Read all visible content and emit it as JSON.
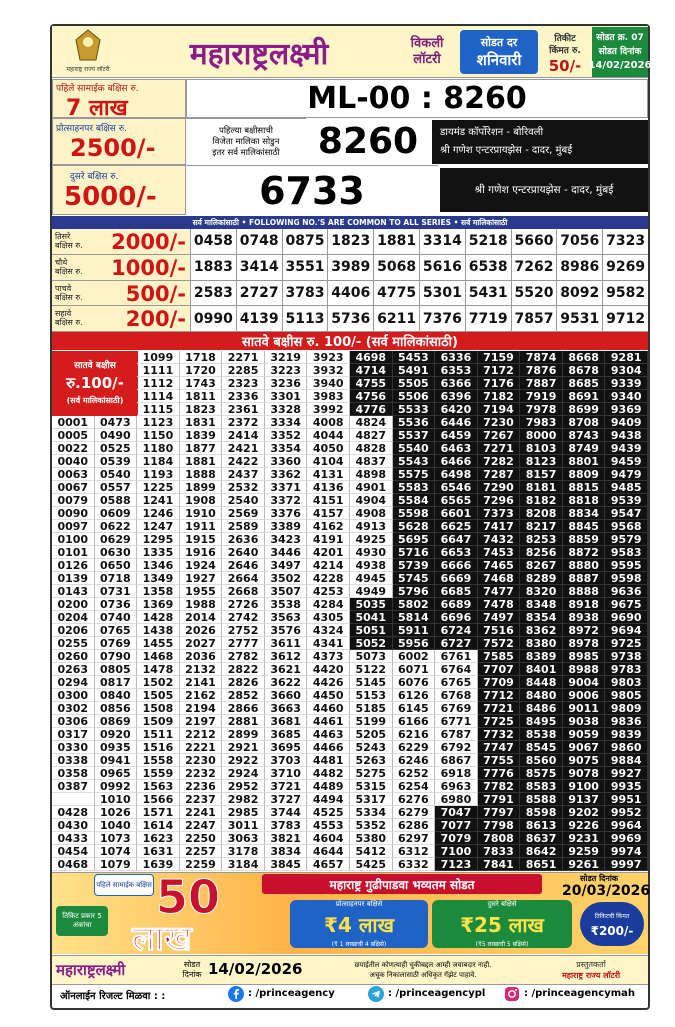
{
  "header": {
    "logo_caption": "महाराष्ट्र राज्य लॉटरी",
    "title": "महाराष्ट्रलक्ष्मी",
    "weekly_1": "विकली",
    "weekly_2": "लॉटरी",
    "draw_day_label": "सोडत दर",
    "draw_day": "शनिवारी",
    "price_label_1": "तिकीट",
    "price_label_2": "किंमत रु.",
    "price": "50/-",
    "draw_no": "सोडत क्र. 07",
    "draw_date_label": "सोडत दिनांक",
    "draw_date": "14/02/2026"
  },
  "first_prize": {
    "label": "पहिले सामाईक बक्षिस रु.",
    "amount": "7 लाख",
    "number": "ML-00 : 8260"
  },
  "consolation_prize": {
    "label": "प्रोत्साहनपर बक्षिस रु.",
    "amount": "2500/-",
    "note_1": "पहिल्या बक्षीसाची",
    "note_2": "विजेता मालिका सोडुन",
    "note_3": "इतर सर्व मालिकांसाठी",
    "number": "8260",
    "seller_1": "डायमंड कॉर्पोरेशन - बोरिवली",
    "seller_2": "श्री गणेश एन्टरप्रायझेस - दादर, मुंबई"
  },
  "second_prize": {
    "label": "दुसरे बक्षिस रु.",
    "amount": "5000/-",
    "number": "6733",
    "seller": "श्री गणेश एन्टरप्रायझेस - दादर, मुंबई"
  },
  "common_banner": "सर्व मालिकांसाठी  •  FOLLOWING NO.'S ARE COMMON TO ALL SERIES  •  सर्व मालिकांसाठी",
  "prizes": [
    {
      "label": [
        "तिसरे",
        "बक्षिस रु."
      ],
      "amount": "2000/-",
      "numbers": [
        "0458",
        "0748",
        "0875",
        "1823",
        "1881",
        "3314",
        "5218",
        "5660",
        "7056",
        "7323"
      ]
    },
    {
      "label": [
        "चौथे",
        "बक्षिस रु."
      ],
      "amount": "1000/-",
      "numbers": [
        "1883",
        "3414",
        "3551",
        "3989",
        "5068",
        "5616",
        "6538",
        "7262",
        "8986",
        "9269"
      ]
    },
    {
      "label": [
        "पाचवे",
        "बक्षिस रु."
      ],
      "amount": "500/-",
      "numbers": [
        "2583",
        "2727",
        "3783",
        "4406",
        "4775",
        "5301",
        "5431",
        "5520",
        "8092",
        "9582"
      ]
    },
    {
      "label": [
        "सहावे",
        "बक्षिस रु."
      ],
      "amount": "200/-",
      "numbers": [
        "0990",
        "4139",
        "5113",
        "5736",
        "6211",
        "7376",
        "7719",
        "7857",
        "9531",
        "9712"
      ]
    }
  ],
  "seventh_prize": {
    "banner": "सातवे बक्षीस रु. 100/- (सर्व मालिकांसाठी)",
    "label_1": "सातवे बक्षीस",
    "label_2": "रु.100/-",
    "label_3": "(सर्व मालिकांसाठी)",
    "columns": [
      [
        "0001",
        "0005",
        "0022",
        "0040",
        "0063",
        "0067",
        "0079",
        "0090",
        "0097",
        "0100",
        "0101",
        "0126",
        "0139",
        "0143",
        "0200",
        "0204",
        "0206",
        "0255",
        "0260",
        "0263",
        "0294",
        "0300",
        "0302",
        "0306",
        "0317",
        "0330",
        "0338",
        "0358",
        "0387",
        null,
        "0428",
        "0430",
        "0433",
        "0454",
        "0468"
      ],
      [
        "0473",
        "0490",
        "0525",
        "0539",
        "0540",
        "0557",
        "0588",
        "0609",
        "0622",
        "0629",
        "0630",
        "0650",
        "0718",
        "0731",
        "0736",
        "0740",
        "0765",
        "0769",
        "0790",
        "0805",
        "0817",
        "0840",
        "0856",
        "0869",
        "0920",
        "0935",
        "0941",
        "0965",
        "0992",
        "1010",
        "1026",
        "1040",
        "1073",
        "1074",
        "1079"
      ],
      [
        "1099",
        "1111",
        "1112",
        "1114",
        "1115",
        "1123",
        "1150",
        "1180",
        "1184",
        "1193",
        "1225",
        "1241",
        "1246",
        "1247",
        "1295",
        "1335",
        "1346",
        "1349",
        "1358",
        "1369",
        "1428",
        "1438",
        "1455",
        "1468",
        "1478",
        "1502",
        "1505",
        "1508",
        "1509",
        "1511",
        "1516",
        "1558",
        "1559",
        "1563",
        "1566",
        "1571",
        "1614",
        "1623",
        "1631",
        "1639"
      ],
      [
        "1718",
        "1720",
        "1743",
        "1811",
        "1823",
        "1831",
        "1839",
        "1877",
        "1881",
        "1888",
        "1899",
        "1908",
        "1910",
        "1911",
        "1915",
        "1916",
        "1924",
        "1927",
        "1955",
        "1988",
        "2014",
        "2026",
        "2027",
        "2036",
        "2132",
        "2141",
        "2162",
        "2194",
        "2197",
        "2212",
        "2221",
        "2230",
        "2232",
        "2236",
        "2237",
        "2241",
        "2247",
        "2250",
        "2257",
        "2259"
      ],
      [
        "2271",
        "2285",
        "2323",
        "2336",
        "2361",
        "2372",
        "2414",
        "2421",
        "2422",
        "2437",
        "2532",
        "2540",
        "2569",
        "2589",
        "2636",
        "2640",
        "2646",
        "2664",
        "2668",
        "2726",
        "2742",
        "2752",
        "2777",
        "2782",
        "2822",
        "2826",
        "2852",
        "2866",
        "2881",
        "2899",
        "2921",
        "2922",
        "2924",
        "2952",
        "2982",
        "2985",
        "3011",
        "3063",
        "3178",
        "3184"
      ],
      [
        "3219",
        "3223",
        "3236",
        "3301",
        "3328",
        "3334",
        "3352",
        "3354",
        "3360",
        "3362",
        "3371",
        "3372",
        "3376",
        "3389",
        "3423",
        "3446",
        "3497",
        "3502",
        "3507",
        "3538",
        "3563",
        "3576",
        "3611",
        "3612",
        "3621",
        "3622",
        "3660",
        "3663",
        "3681",
        "3685",
        "3695",
        "3703",
        "3710",
        "3721",
        "3727",
        "3744",
        "3783",
        "3821",
        "3834",
        "3845"
      ],
      [
        "3923",
        "3932",
        "3940",
        "3983",
        "3992",
        "4008",
        "4044",
        "4050",
        "4104",
        "4131",
        "4136",
        "4151",
        "4157",
        "4162",
        "4191",
        "4201",
        "4214",
        "4228",
        "4253",
        "4284",
        "4305",
        "4324",
        "4341",
        "4373",
        "4420",
        "4426",
        "4450",
        "4460",
        "4461",
        "4463",
        "4466",
        "4481",
        "4482",
        "4489",
        "4494",
        "4525",
        "4553",
        "4604",
        "4644",
        "4657"
      ],
      [
        "4698",
        "4714",
        "4755",
        "4756",
        "4776",
        "4824",
        "4827",
        "4828",
        "4837",
        "4898",
        "4901",
        "4904",
        "4908",
        "4913",
        "4925",
        "4930",
        "4938",
        "4945",
        "4949",
        "5035",
        "5041",
        "5051",
        "5052",
        "5073",
        "5122",
        "5145",
        "5153",
        "5185",
        "5199",
        "5205",
        "5243",
        "5263",
        "5275",
        "5315",
        "5317",
        "5334",
        "5352",
        "5380",
        "5412",
        "5425"
      ],
      [
        "5453",
        "5491",
        "5505",
        "5506",
        "5533",
        "5536",
        "5537",
        "5540",
        "5543",
        "5575",
        "5583",
        "5584",
        "5598",
        "5628",
        "5695",
        "5716",
        "5739",
        "5745",
        "5796",
        "5802",
        "5814",
        "5911",
        "5956",
        "6002",
        "6071",
        "6076",
        "6126",
        "6145",
        "6166",
        "6216",
        "6229",
        "6246",
        "6252",
        "6254",
        "6276",
        "6279",
        "6286",
        "6297",
        "6312",
        "6332"
      ],
      [
        "6336",
        "6353",
        "6366",
        "6396",
        "6420",
        "6446",
        "6459",
        "6463",
        "6466",
        "6498",
        "6546",
        "6565",
        "6601",
        "6625",
        "6647",
        "6653",
        "6666",
        "6669",
        "6685",
        "6689",
        "6696",
        "6724",
        "6727",
        "6761",
        "6764",
        "6765",
        "6768",
        "6769",
        "6771",
        "6787",
        "6792",
        "6867",
        "6918",
        "6963",
        "6980",
        "7047",
        "7077",
        "7079",
        "7100",
        "7123"
      ],
      [
        "7159",
        "7172",
        "7176",
        "7182",
        "7194",
        "7230",
        "7267",
        "7271",
        "7282",
        "7287",
        "7290",
        "7296",
        "7373",
        "7417",
        "7432",
        "7453",
        "7465",
        "7468",
        "7477",
        "7478",
        "7497",
        "7516",
        "7572",
        "7585",
        "7707",
        "7709",
        "7712",
        "7721",
        "7725",
        "7732",
        "7747",
        "7755",
        "7776",
        "7782",
        "7791",
        "7797",
        "7798",
        "7808",
        "7833",
        "7841"
      ],
      [
        "7874",
        "7876",
        "7887",
        "7919",
        "7978",
        "7983",
        "8000",
        "8103",
        "8123",
        "8157",
        "8181",
        "8182",
        "8208",
        "8217",
        "8253",
        "8256",
        "8267",
        "8289",
        "8320",
        "8348",
        "8354",
        "8362",
        "8380",
        "8389",
        "8401",
        "8448",
        "8480",
        "8486",
        "8495",
        "8538",
        "8545",
        "8560",
        "8575",
        "8583",
        "8588",
        "8598",
        "8613",
        "8637",
        "8642",
        "8651"
      ],
      [
        "8668",
        "8678",
        "8685",
        "8691",
        "8699",
        "8708",
        "8743",
        "8749",
        "8801",
        "8809",
        "8815",
        "8818",
        "8834",
        "8845",
        "8859",
        "8872",
        "8880",
        "8887",
        "8888",
        "8918",
        "8938",
        "8972",
        "8978",
        "8985",
        "8988",
        "9004",
        "9006",
        "9011",
        "9038",
        "9059",
        "9067",
        "9075",
        "9078",
        "9100",
        "9137",
        "9202",
        "9226",
        "9231",
        "9259",
        "9261"
      ],
      [
        "9281",
        "9304",
        "9339",
        "9340",
        "9369",
        "9409",
        "9438",
        "9439",
        "9459",
        "9479",
        "9485",
        "9539",
        "9547",
        "9568",
        "9579",
        "9583",
        "9595",
        "9598",
        "9636",
        "9675",
        "9690",
        "9694",
        "9725",
        "9738",
        "9783",
        "9803",
        "9805",
        "9809",
        "9836",
        "9839",
        "9860",
        "9884",
        "9927",
        "9935",
        "9951",
        "9952",
        "9964",
        "9969",
        "9974",
        "9997"
      ]
    ]
  },
  "ad": {
    "first_label": "पहिले सामाईक बक्षिस",
    "first_amount": "50",
    "first_unit": "लाख",
    "type_note": "तिकिट प्रकार 5 अंकांचा",
    "title": "महाराष्ट्र गुढीपाडवा भव्यतम सोडत",
    "date_label": "सोडत दिनांक",
    "date": "20/03/2026",
    "consolation_label": "प्रोत्साहनपर बक्षिसे",
    "consolation_amount": "₹4 लाख",
    "consolation_note": "(₹ 1 लाखाची 4 बक्षिसे)",
    "second_label": "दुसरे बक्षिसे",
    "second_amount": "₹25 लाख",
    "second_note": "(₹5 लाखाची 5 बक्षिसे)",
    "price_label": "तिकिटची किंमत",
    "price": "₹200/-"
  },
  "footer": {
    "brand": "महाराष्ट्रलक्ष्मी",
    "date_label_1": "सोडत",
    "date_label_2": "दिनांक",
    "date": "14/02/2026",
    "disclaimer_1": "छपाईतील कोणत्याही चुकीबद्दल आम्ही जवाबदार नाही.",
    "disclaimer_2": "अचूक निकालासाठी अधिकृत गॅझेट पाहावे.",
    "presenter_label": "प्रस्तुतकर्ता",
    "presenter": "महाराष्ट्र राज्य लॉटरी"
  },
  "social": {
    "label": "ऑनलाईन रिजल्ट मिळवा : :",
    "facebook": ": /princeagency",
    "telegram": ": /princeagencypl",
    "instagram": ": /princeagencymah"
  }
}
